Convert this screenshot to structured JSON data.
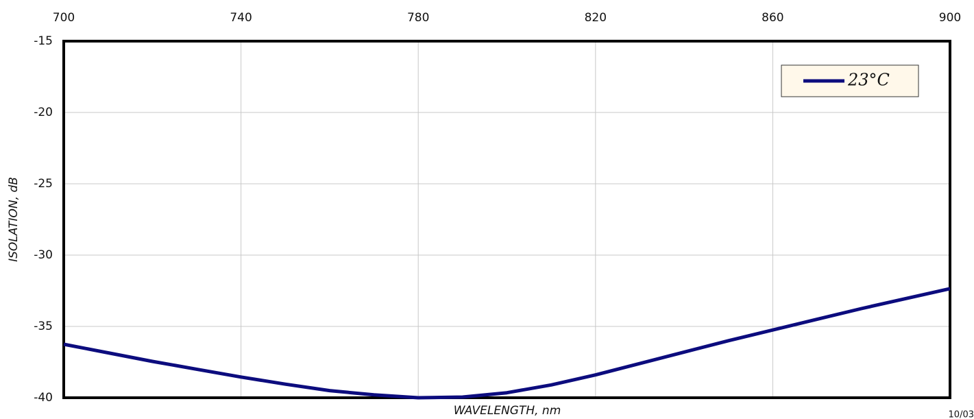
{
  "chart_data": {
    "type": "line",
    "x_label": "WAVELENGTH, nm",
    "y_label": "ISOLATION, dB",
    "x": [
      700,
      710,
      720,
      730,
      740,
      750,
      760,
      770,
      780,
      790,
      800,
      810,
      820,
      830,
      840,
      850,
      860,
      870,
      880,
      890,
      900
    ],
    "series": [
      {
        "name": "23°C",
        "color": "#0c0c7e",
        "values": [
          -36.25,
          -36.85,
          -37.45,
          -38.0,
          -38.55,
          -39.05,
          -39.5,
          -39.8,
          -40.0,
          -39.95,
          -39.65,
          -39.1,
          -38.4,
          -37.6,
          -36.8,
          -36.0,
          -35.25,
          -34.5,
          -33.75,
          -33.05,
          -32.35
        ]
      }
    ],
    "xlim": [
      700,
      900
    ],
    "xticks": [
      700,
      740,
      780,
      820,
      860,
      900
    ],
    "ylim": [
      -40,
      -15
    ],
    "yticks": [
      -15,
      -20,
      -25,
      -30,
      -35,
      -40
    ],
    "grid": true,
    "legend": "upper right",
    "annotation": "10/03"
  }
}
